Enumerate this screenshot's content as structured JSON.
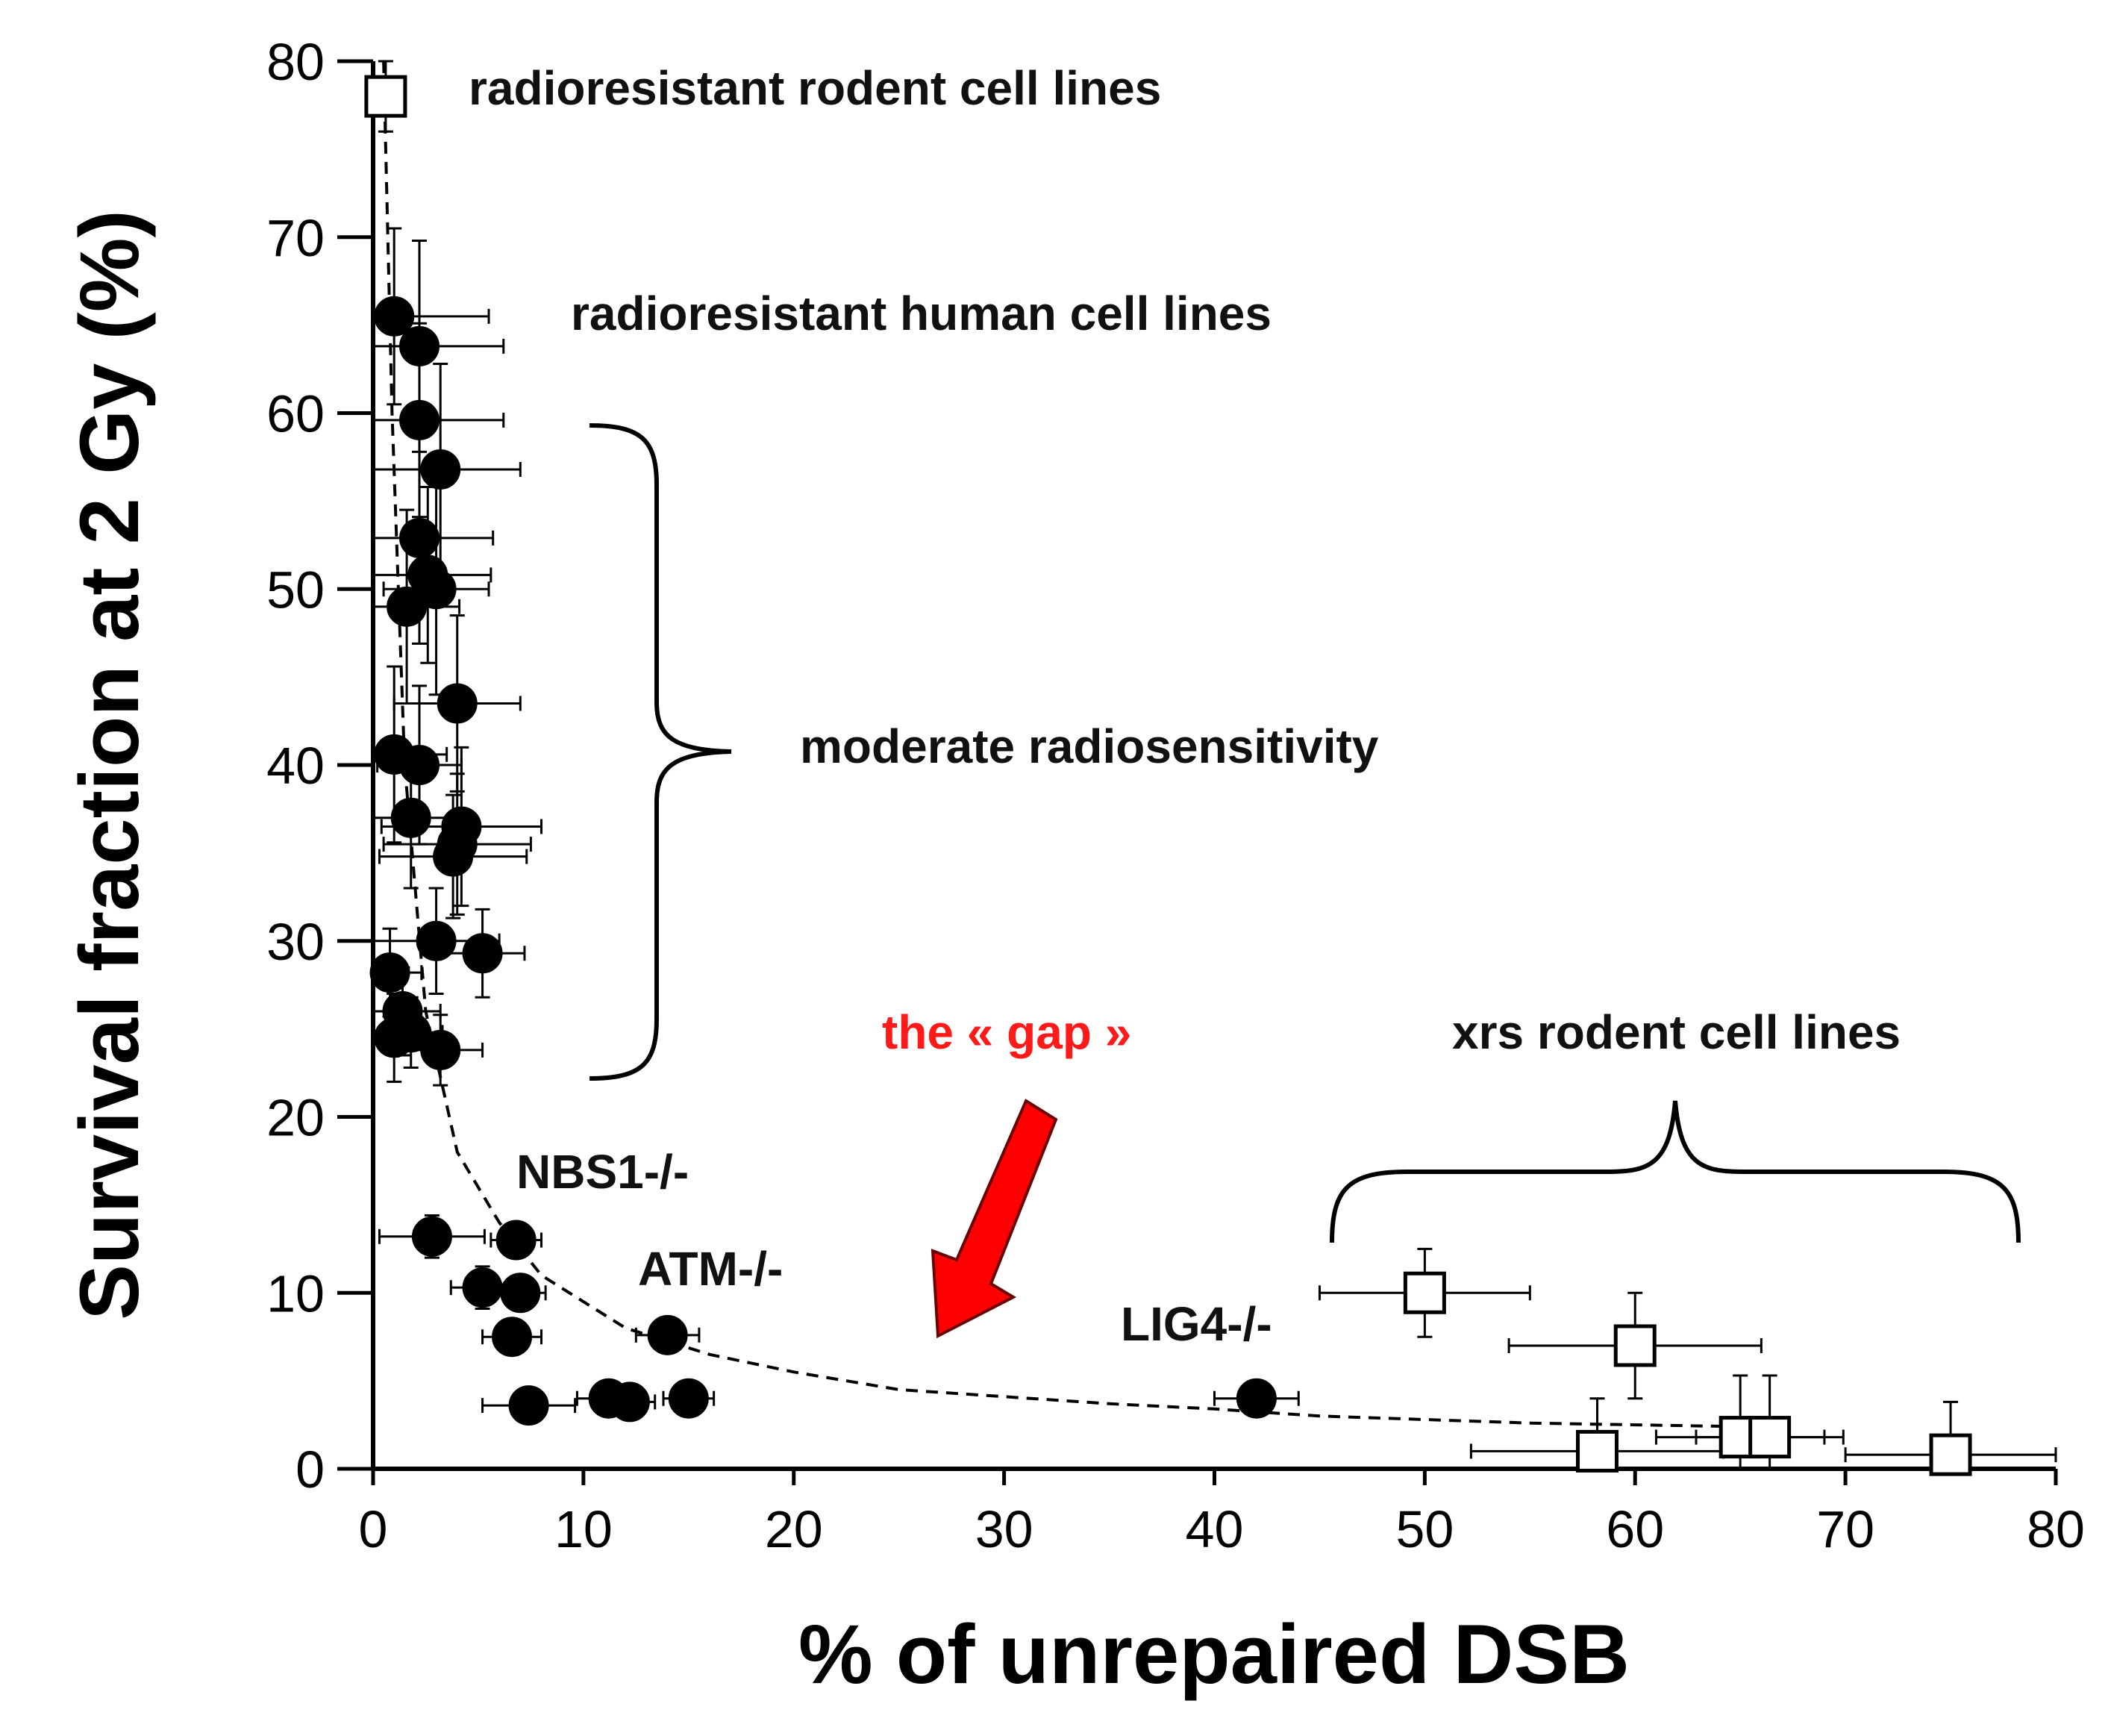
{
  "chart_data": {
    "type": "scatter",
    "title": "",
    "xlabel": "% of unrepaired DSB",
    "ylabel": "Survival fraction at 2 Gy (%)",
    "xlim": [
      0,
      80
    ],
    "ylim": [
      0,
      80
    ],
    "xticks": [
      "0",
      "10",
      "20",
      "30",
      "40",
      "50",
      "60",
      "70",
      "80"
    ],
    "yticks": [
      "0",
      "10",
      "20",
      "30",
      "40",
      "50",
      "60",
      "70",
      "80"
    ],
    "grid": false,
    "series": [
      {
        "name": "human cell lines",
        "marker": "filled-circle",
        "color": "#000000",
        "points": [
          {
            "x": 1.0,
            "y": 65.5,
            "xerr": 4.5,
            "yerr": 5.0
          },
          {
            "x": 2.2,
            "y": 63.8,
            "xerr": 4.0,
            "yerr": 6.0
          },
          {
            "x": 2.2,
            "y": 59.6,
            "xerr": 4.0,
            "yerr": 5.5
          },
          {
            "x": 3.2,
            "y": 56.8,
            "xerr": 3.8,
            "yerr": 6.0
          },
          {
            "x": 2.2,
            "y": 52.9,
            "xerr": 3.5,
            "yerr": 6.0
          },
          {
            "x": 2.6,
            "y": 50.8,
            "xerr": 3.0,
            "yerr": 5.0
          },
          {
            "x": 3.0,
            "y": 50.0,
            "xerr": 2.5,
            "yerr": 6.0
          },
          {
            "x": 1.6,
            "y": 49.0,
            "xerr": 2.5,
            "yerr": 5.5
          },
          {
            "x": 4.0,
            "y": 43.5,
            "xerr": 3.0,
            "yerr": 5.0
          },
          {
            "x": 1.0,
            "y": 40.6,
            "xerr": 2.5,
            "yerr": 5.0
          },
          {
            "x": 2.2,
            "y": 40.0,
            "xerr": 2.0,
            "yerr": 4.5
          },
          {
            "x": 1.8,
            "y": 37.0,
            "xerr": 2.0,
            "yerr": 4.0
          },
          {
            "x": 4.2,
            "y": 36.5,
            "xerr": 3.8,
            "yerr": 4.5
          },
          {
            "x": 4.0,
            "y": 35.5,
            "xerr": 3.5,
            "yerr": 4.0
          },
          {
            "x": 3.8,
            "y": 34.8,
            "xerr": 3.5,
            "yerr": 3.5
          },
          {
            "x": 3.0,
            "y": 30.0,
            "xerr": 3.0,
            "yerr": 3.0
          },
          {
            "x": 5.2,
            "y": 29.3,
            "xerr": 2.0,
            "yerr": 2.5
          },
          {
            "x": 0.8,
            "y": 28.2,
            "xerr": 1.5,
            "yerr": 2.5
          },
          {
            "x": 1.4,
            "y": 26.0,
            "xerr": 1.8,
            "yerr": 2.5
          },
          {
            "x": 1.0,
            "y": 24.5,
            "xerr": 1.5,
            "yerr": 2.5
          },
          {
            "x": 1.8,
            "y": 24.8,
            "xerr": 1.5,
            "yerr": 2.0
          },
          {
            "x": 3.2,
            "y": 23.8,
            "xerr": 2.0,
            "yerr": 2.0
          },
          {
            "x": 2.8,
            "y": 13.2,
            "xerr": 2.5,
            "yerr": 1.2
          },
          {
            "x": 6.8,
            "y": 13.0,
            "xerr": 1.2,
            "yerr": 1.0
          },
          {
            "x": 5.2,
            "y": 10.3,
            "xerr": 1.5,
            "yerr": 1.2
          },
          {
            "x": 7.0,
            "y": 10.0,
            "xerr": 1.2,
            "yerr": 1.0
          },
          {
            "x": 6.6,
            "y": 7.5,
            "xerr": 1.4,
            "yerr": 1.0
          },
          {
            "x": 7.4,
            "y": 3.6,
            "xerr": 2.2,
            "yerr": 0.6
          },
          {
            "x": 11.2,
            "y": 4.0,
            "xerr": 1.5,
            "yerr": 0.6
          },
          {
            "x": 12.2,
            "y": 3.8,
            "xerr": 1.2,
            "yerr": 0.5
          },
          {
            "x": 14.0,
            "y": 7.6,
            "xerr": 1.5,
            "yerr": 1.0
          },
          {
            "x": 15.0,
            "y": 4.0,
            "xerr": 1.2,
            "yerr": 0.6
          },
          {
            "x": 42.0,
            "y": 4.0,
            "xerr": 2.0,
            "yerr": 0.5
          }
        ]
      },
      {
        "name": "rodent cell lines",
        "marker": "open-square",
        "color": "#000000",
        "points": [
          {
            "x": 0.6,
            "y": 78.0,
            "xerr": 0.8,
            "yerr": 2.0
          },
          {
            "x": 50.0,
            "y": 10.0,
            "xerr": 5.0,
            "yerr": 2.5
          },
          {
            "x": 60.0,
            "y": 7.0,
            "xerr": 6.0,
            "yerr": 3.0
          },
          {
            "x": 58.2,
            "y": 1.0,
            "xerr": 6.0,
            "yerr": 3.0
          },
          {
            "x": 65.0,
            "y": 1.8,
            "xerr": 4.0,
            "yerr": 3.5
          },
          {
            "x": 66.4,
            "y": 1.8,
            "xerr": 3.5,
            "yerr": 3.5
          },
          {
            "x": 75.0,
            "y": 0.8,
            "xerr": 5.0,
            "yerr": 3.0
          }
        ]
      }
    ],
    "trend_curve": [
      [
        0.5,
        80
      ],
      [
        0.9,
        60
      ],
      [
        1.5,
        40
      ],
      [
        2.5,
        26
      ],
      [
        4.0,
        18
      ],
      [
        6.0,
        14
      ],
      [
        8.0,
        11
      ],
      [
        12.0,
        8
      ],
      [
        16.0,
        6.5
      ],
      [
        20.0,
        5.5
      ],
      [
        25.0,
        4.5
      ],
      [
        30.0,
        4.1
      ],
      [
        35.0,
        3.7
      ],
      [
        40.0,
        3.4
      ],
      [
        45.0,
        3.0
      ],
      [
        50.0,
        2.8
      ],
      [
        55.0,
        2.6
      ],
      [
        60.0,
        2.5
      ],
      [
        65.0,
        2.4
      ]
    ],
    "annotations": [
      {
        "text": "radioresistant rodent cell lines",
        "color": "#111111"
      },
      {
        "text": "radioresistant human cell lines",
        "color": "#111111"
      },
      {
        "text": "moderate radiosensitivity",
        "color": "#111111"
      },
      {
        "text": "the « gap »",
        "color": "#ff1a1a"
      },
      {
        "text": "xrs rodent cell lines",
        "color": "#111111"
      },
      {
        "text": "NBS1-/-",
        "color": "#111111"
      },
      {
        "text": "ATM-/-",
        "color": "#111111"
      },
      {
        "text": "LIG4-/-",
        "color": "#111111"
      }
    ]
  }
}
